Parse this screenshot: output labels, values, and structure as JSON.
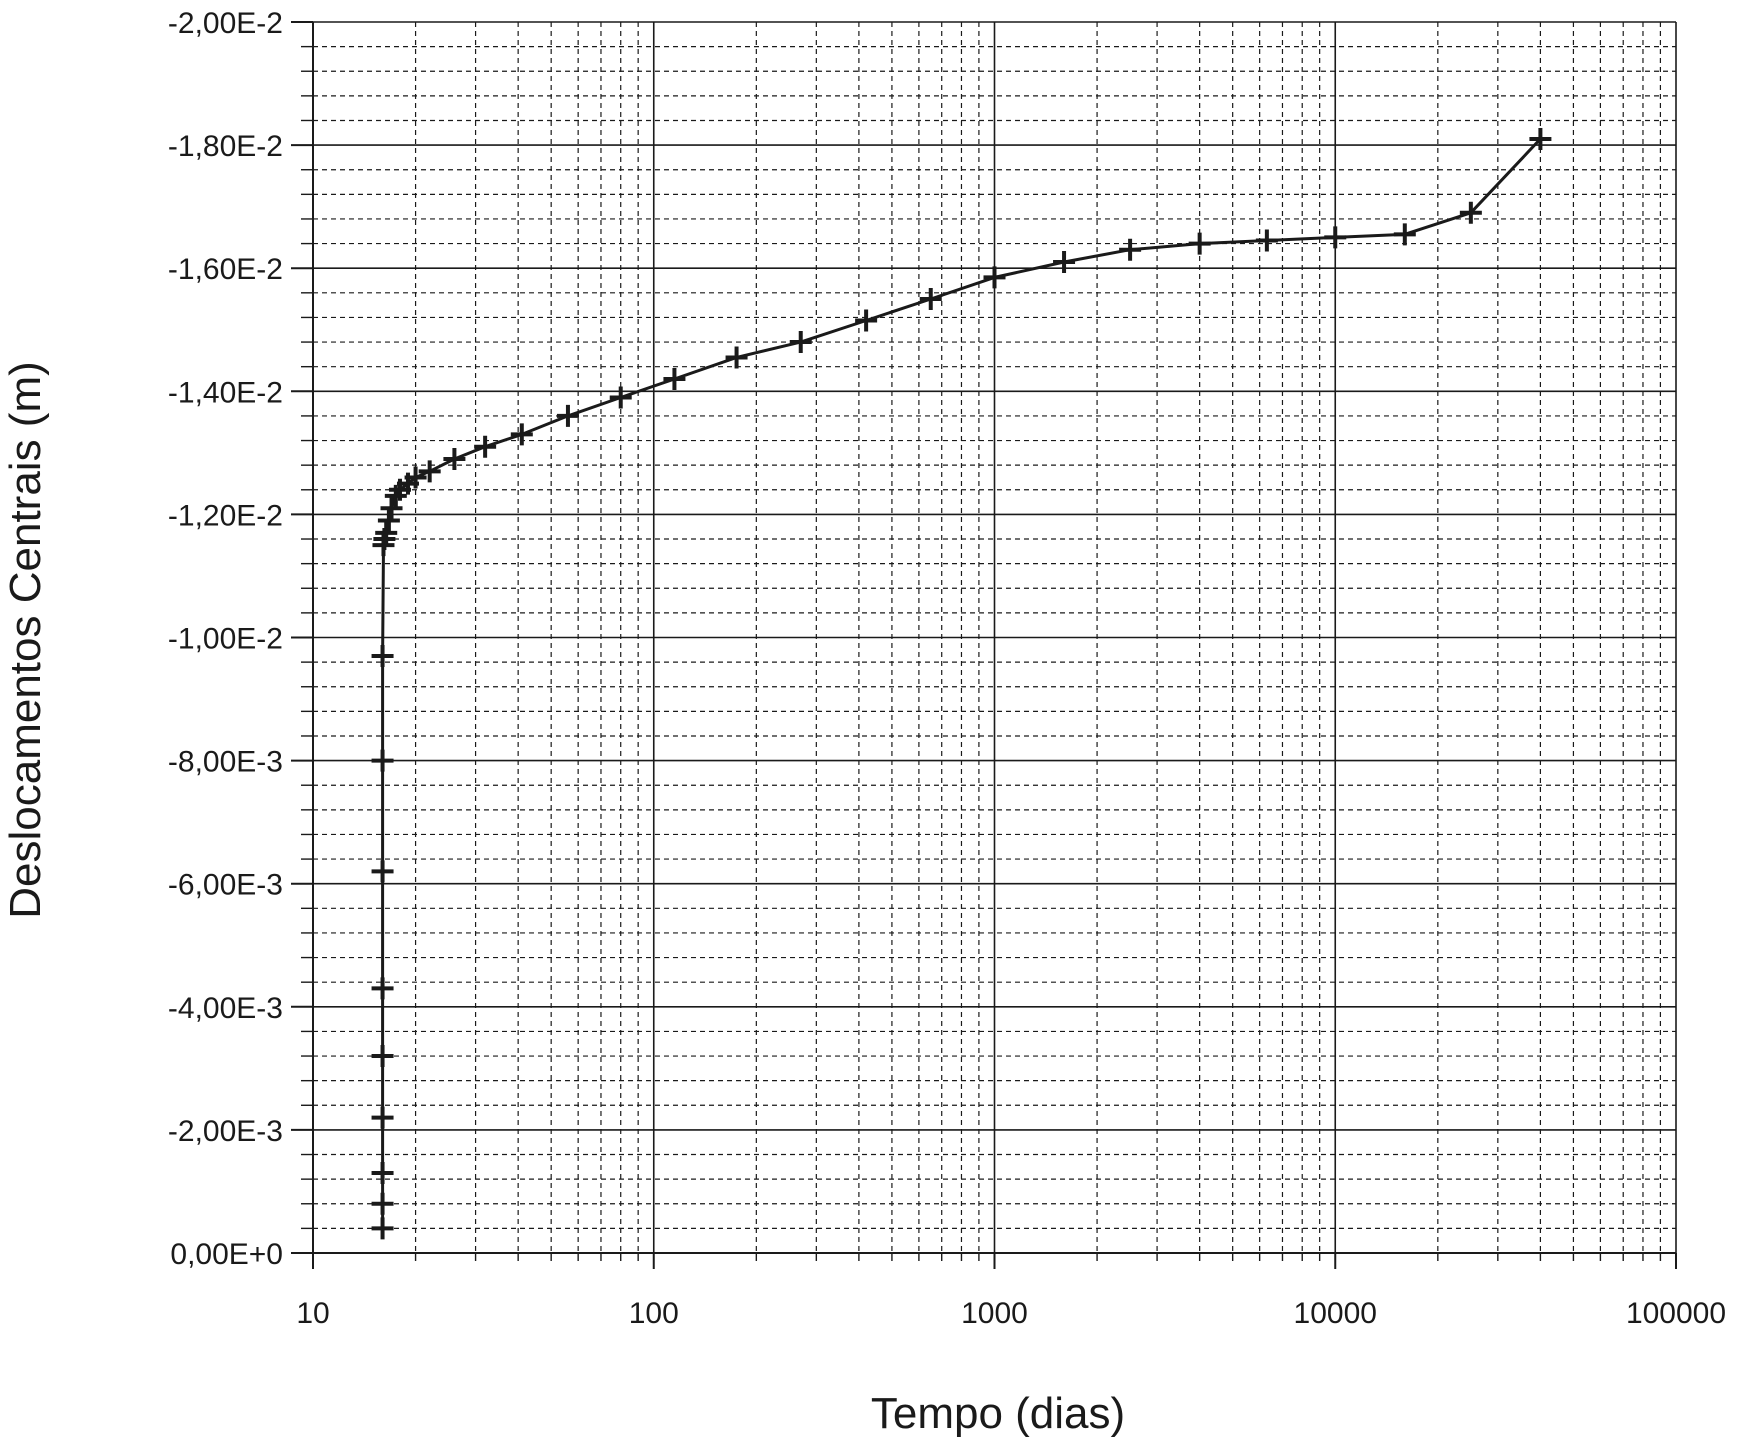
{
  "chart_data": {
    "type": "line",
    "title": "",
    "xlabel": "Tempo (dias)",
    "ylabel": "Deslocamentos Centrais (m)",
    "x_scale": "log",
    "xlim": [
      10,
      100000
    ],
    "ylim": [
      0,
      -0.02
    ],
    "y_axis_inverted": true,
    "grid": true,
    "grid_style": "major solid, minor dashed",
    "marker": "plus",
    "line_color": "#1a1a1a",
    "x_tick_labels": [
      "10",
      "100",
      "1000",
      "10000",
      "100000"
    ],
    "y_tick_labels": [
      "0,00E+0",
      "-2,00E-3",
      "-4,00E-3",
      "-6,00E-3",
      "-8,00E-3",
      "-1,00E-2",
      "-1,20E-2",
      "-1,40E-2",
      "-1,60E-2",
      "-1,80E-2",
      "-2,00E-2"
    ],
    "series": [
      {
        "x": [
          16,
          16,
          16,
          16,
          16,
          16,
          16,
          16,
          16,
          16.1,
          16.2,
          16.4,
          16.7,
          17,
          17.5,
          18,
          19,
          20,
          22,
          26,
          32,
          41,
          56,
          80,
          115,
          175,
          270,
          420,
          650,
          1000,
          1600,
          2500,
          4000,
          6300,
          10000,
          16000,
          25000,
          40000
        ],
        "y": [
          -0.0004,
          -0.0008,
          -0.0013,
          -0.0022,
          -0.0032,
          -0.0043,
          -0.0062,
          -0.008,
          -0.0097,
          -0.0115,
          -0.0116,
          -0.0117,
          -0.0119,
          -0.0121,
          -0.0123,
          -0.0124,
          -0.0125,
          -0.0126,
          -0.0127,
          -0.0129,
          -0.0131,
          -0.0133,
          -0.0136,
          -0.0139,
          -0.0142,
          -0.01455,
          -0.0148,
          -0.01515,
          -0.0155,
          -0.01585,
          -0.0161,
          -0.0163,
          -0.0164,
          -0.01645,
          -0.0165,
          -0.01655,
          -0.0169,
          -0.0181
        ]
      }
    ]
  }
}
